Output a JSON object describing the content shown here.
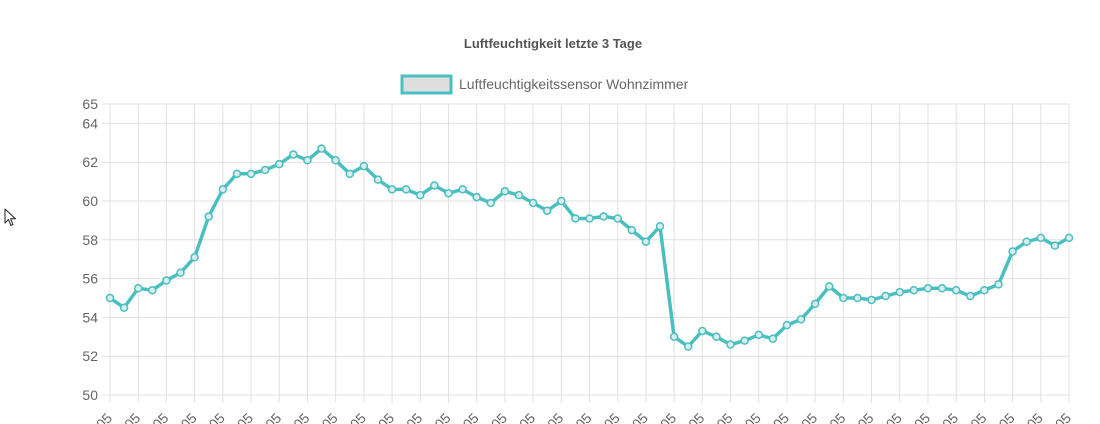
{
  "chart_data": {
    "type": "line",
    "title": "Luftfeuchtigkeit letzte 3 Tage",
    "legend": {
      "position": "top",
      "entries": [
        "Luftfeuchtigkeitssensor Wohnzimmer"
      ]
    },
    "ylim": [
      50,
      65
    ],
    "y_ticks": [
      50,
      52,
      54,
      56,
      58,
      60,
      62,
      64,
      65
    ],
    "x_tick_labels": [
      "05",
      "05",
      "05",
      "05",
      "05",
      "05",
      "05",
      "05",
      "05",
      "05",
      "05",
      "05",
      "05",
      "05",
      "05",
      "05",
      "05",
      "05",
      "05",
      "05",
      "05",
      "05",
      "05",
      "05",
      "05",
      "05",
      "05",
      "05",
      "05",
      "05",
      "05",
      "05",
      "05",
      "05",
      "05"
    ],
    "grid": true,
    "series": [
      {
        "name": "Luftfeuchtigkeitssensor Wohnzimmer",
        "color": "#4bbfbf",
        "point_fill": "#d9eded",
        "values": [
          55.0,
          54.5,
          55.5,
          55.4,
          55.9,
          56.3,
          57.1,
          59.2,
          60.6,
          61.4,
          61.4,
          61.6,
          61.9,
          62.4,
          62.1,
          62.7,
          62.1,
          61.4,
          61.8,
          61.1,
          60.6,
          60.6,
          60.3,
          60.8,
          60.4,
          60.6,
          60.2,
          59.9,
          60.5,
          60.3,
          59.9,
          59.5,
          60.0,
          59.1,
          59.1,
          59.2,
          59.1,
          58.5,
          57.9,
          58.7,
          53.0,
          52.5,
          53.3,
          53.0,
          52.6,
          52.8,
          53.1,
          52.9,
          53.6,
          53.9,
          54.7,
          55.6,
          55.0,
          55.0,
          54.9,
          55.1,
          55.3,
          55.4,
          55.5,
          55.5,
          55.4,
          55.1,
          55.4,
          55.7,
          57.4,
          57.9,
          58.1,
          57.7,
          58.1
        ]
      }
    ]
  },
  "icons": {
    "cursor": "mouse-pointer-icon"
  }
}
